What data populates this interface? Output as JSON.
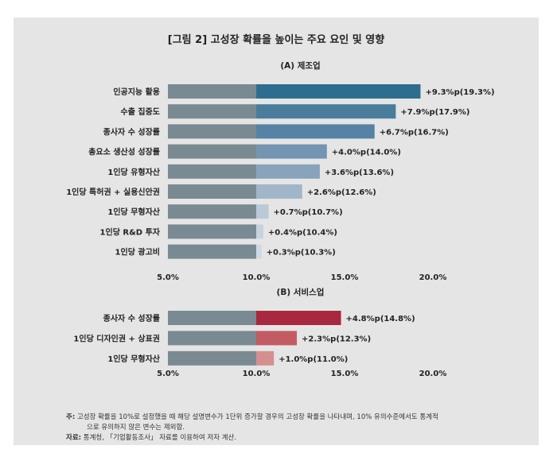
{
  "title": "[그림 2] 고성장 확률을 높이는 주요 요인 및 영향",
  "chart_data": [
    {
      "type": "bar",
      "orientation": "horizontal",
      "title": "(A) 제조업",
      "baseline": 10.0,
      "xlim": [
        5.0,
        20.0
      ],
      "xticks": [
        5.0,
        10.0,
        15.0,
        20.0
      ],
      "xtick_labels": [
        "5.0%",
        "10.0%",
        "15.0%",
        "20.0%"
      ],
      "categories": [
        "인공지능 활용",
        "수출 집중도",
        "종사자 수 성장률",
        "총요소 생산성 성장률",
        "1인당 유형자산",
        "1인당 특허권 + 실용신안권",
        "1인당 무형자산",
        "1인당 R&D 투자",
        "1인당 광고비"
      ],
      "values": [
        19.3,
        17.9,
        16.7,
        14.0,
        13.6,
        12.6,
        10.7,
        10.4,
        10.3
      ],
      "labels": [
        "+9.3%p(19.3%)",
        "+7.9%p(17.9%)",
        "+6.7%p(16.7%)",
        "+4.0%p(14.0%)",
        "+3.6%p(13.6%)",
        "+2.6%p(12.6%)",
        "+0.7%p(10.7%)",
        "+0.4%p(10.4%)",
        "+0.3%p(10.3%)"
      ],
      "colors": [
        "#2d6e8f",
        "#4a7d9b",
        "#5683a5",
        "#7395b1",
        "#8aa3bd",
        "#a2b6ca",
        "#b9c9d8",
        "#c6d3df",
        "#cfd9e3"
      ]
    },
    {
      "type": "bar",
      "orientation": "horizontal",
      "title": "(B) 서비스업",
      "baseline": 10.0,
      "xlim": [
        5.0,
        20.0
      ],
      "xticks": [
        5.0,
        10.0,
        15.0,
        20.0
      ],
      "xtick_labels": [
        "5.0%",
        "10.0%",
        "15.0%",
        "20.0%"
      ],
      "categories": [
        "종사자 수 성장률",
        "1인당 디자인권 + 상표권",
        "1인당 무형자산"
      ],
      "values": [
        14.8,
        12.3,
        11.0
      ],
      "labels": [
        "+4.8%p(14.8%)",
        "+2.3%p(12.3%)",
        "+1.0%p(11.0%)"
      ],
      "colors": [
        "#a8283f",
        "#c25c62",
        "#d58f8f"
      ]
    }
  ],
  "base_bar_color": "#7a8a92",
  "notes": {
    "note_label": "주:",
    "note_line1": "고성장 확률을 10%로 설정했을 때 해당 설명변수가 1단위 증가할 경우의 고성장 확률을 나타내며, 10% 유의수준에서도 통계적",
    "note_line2": "으로 유의하지 않은 변수는 제외함.",
    "source_label": "자료:",
    "source_text": "통계청, 「기업활동조사」 자료를 이용하여 저자 계산."
  }
}
